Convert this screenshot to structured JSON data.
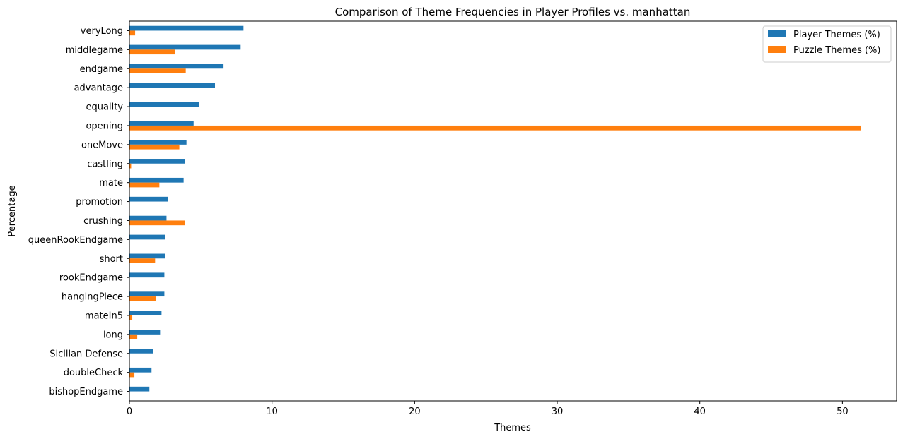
{
  "chart_data": {
    "type": "bar",
    "orientation": "horizontal",
    "title": "Comparison of Theme Frequencies in Player Profiles vs. manhattan",
    "xlabel": "Themes",
    "ylabel": "Percentage",
    "xlim": [
      0,
      53.8
    ],
    "xticks": [
      0,
      10,
      20,
      30,
      40,
      50
    ],
    "grid": false,
    "legend_position": "top-right",
    "categories": [
      "veryLong",
      "middlegame",
      "endgame",
      "advantage",
      "equality",
      "opening",
      "oneMove",
      "castling",
      "mate",
      "promotion",
      "crushing",
      "queenRookEndgame",
      "short",
      "rookEndgame",
      "hangingPiece",
      "mateIn5",
      "long",
      "Sicilian Defense",
      "doubleCheck",
      "bishopEndgame"
    ],
    "series": [
      {
        "name": "Player Themes (%)",
        "color": "#1f77b4",
        "values": [
          8.0,
          7.8,
          6.6,
          6.0,
          4.9,
          4.5,
          4.0,
          3.9,
          3.8,
          2.7,
          2.6,
          2.5,
          2.5,
          2.45,
          2.45,
          2.25,
          2.15,
          1.65,
          1.55,
          1.4
        ]
      },
      {
        "name": "Puzzle Themes (%)",
        "color": "#ff7f0e",
        "values": [
          0.4,
          3.2,
          3.95,
          0,
          0,
          51.3,
          3.5,
          0.12,
          2.1,
          0,
          3.9,
          0,
          1.8,
          0,
          1.85,
          0.2,
          0.55,
          0,
          0.35,
          0
        ]
      }
    ]
  }
}
